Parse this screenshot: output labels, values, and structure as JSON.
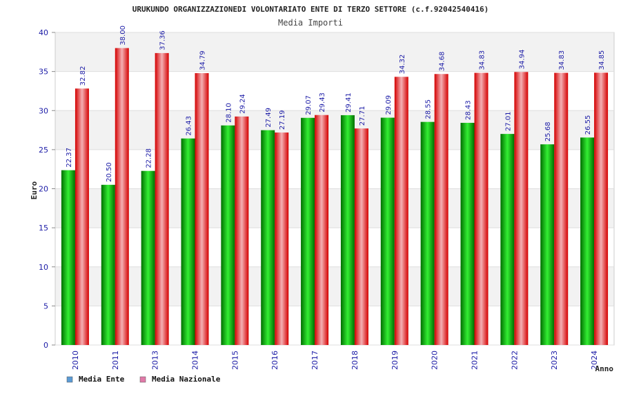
{
  "colors": {
    "ente_dark": "#006e00",
    "ente_light": "#33ee33",
    "naz_dark": "#d40000",
    "naz_light": "#f4b0b4",
    "legend_ente": "#5b9bd5",
    "legend_naz": "#e07aa8",
    "tick_text": "#1a1aa6"
  },
  "chart_data": {
    "type": "bar",
    "title": "URUKUNDO ORGANIZZAZIONEDI VOLONTARIATO ENTE DI TERZO SETTORE (c.f.92042540416)",
    "subtitle": "Media Importi",
    "xlabel": "Anno",
    "ylabel": "Euro",
    "ylim": [
      0,
      40
    ],
    "yticks": [
      "0",
      "5",
      "10",
      "15",
      "20",
      "25",
      "30",
      "35",
      "40"
    ],
    "categories": [
      "2010",
      "2011",
      "2013",
      "2014",
      "2015",
      "2016",
      "2017",
      "2018",
      "2019",
      "2020",
      "2021",
      "2022",
      "2023",
      "2024"
    ],
    "series": [
      {
        "name": "Media Ente",
        "values": [
          22.37,
          20.5,
          22.28,
          26.43,
          28.1,
          27.49,
          29.07,
          29.41,
          29.09,
          28.55,
          28.43,
          27.01,
          25.68,
          26.55
        ],
        "labels": [
          "22.37",
          "20.50",
          "22.28",
          "26.43",
          "28.10",
          "27.49",
          "29.07",
          "29.41",
          "29.09",
          "28.55",
          "28.43",
          "27.01",
          "25.68",
          "26.55"
        ]
      },
      {
        "name": "Media Nazionale",
        "values": [
          32.82,
          38.0,
          37.36,
          34.79,
          29.24,
          27.19,
          29.43,
          27.71,
          34.32,
          34.68,
          34.83,
          34.94,
          34.83,
          34.85
        ],
        "labels": [
          "32.82",
          "38.00",
          "37.36",
          "34.79",
          "29.24",
          "27.19",
          "29.43",
          "27.71",
          "34.32",
          "34.68",
          "34.83",
          "34.94",
          "34.83",
          "34.85"
        ]
      }
    ],
    "grid": true,
    "legend": "bottom-left"
  }
}
